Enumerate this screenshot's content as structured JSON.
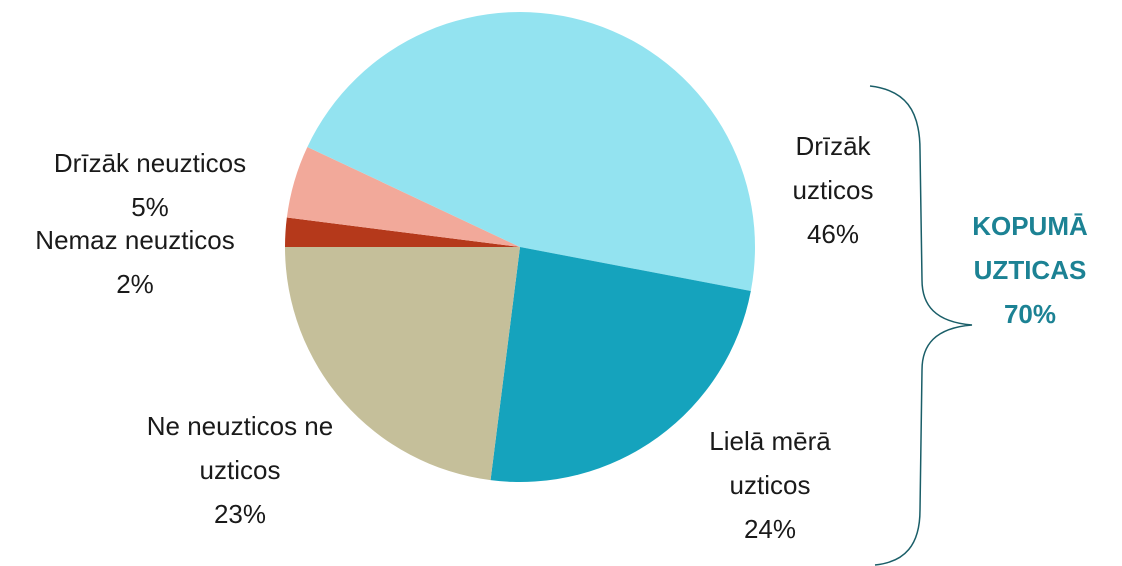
{
  "chart_data": {
    "type": "pie",
    "categories": [
      "Nemaz neuzticos",
      "Drīzāk neuzticos",
      "Drīzāk uzticos",
      "Lielā mērā uzticos",
      "Ne neuzticos ne uzticos"
    ],
    "values": [
      2,
      5,
      46,
      24,
      23
    ],
    "value_labels": [
      "2%",
      "5%",
      "46%",
      "24%",
      "23%"
    ],
    "colors": [
      "#b5391b",
      "#f2a99a",
      "#93e3f0",
      "#15a3bd",
      "#c5bf9a"
    ],
    "annotation": "KOPUMĀ UZTICAS 70%"
  }
}
